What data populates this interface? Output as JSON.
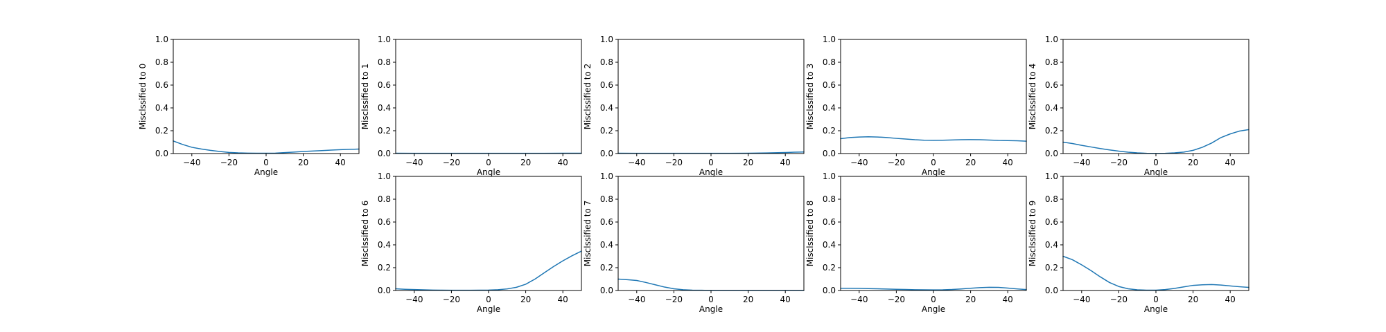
{
  "chart_data": [
    {
      "type": "line",
      "xlabel": "Angle",
      "ylabel": "Misclssified to 0",
      "xlim": [
        -50,
        50
      ],
      "ylim": [
        0,
        1
      ],
      "xticks": [
        -40,
        -20,
        0,
        20,
        40
      ],
      "yticks": [
        0.0,
        0.2,
        0.4,
        0.6,
        0.8,
        1.0
      ],
      "grid": false,
      "series": [
        {
          "color": "#1f77b4",
          "x": [
            -50,
            -45,
            -40,
            -35,
            -30,
            -25,
            -20,
            -15,
            -10,
            -5,
            0,
            5,
            10,
            15,
            20,
            25,
            30,
            35,
            40,
            45,
            50
          ],
          "y": [
            0.11,
            0.08,
            0.055,
            0.04,
            0.028,
            0.018,
            0.01,
            0.006,
            0.004,
            0.003,
            0.003,
            0.004,
            0.008,
            0.013,
            0.018,
            0.022,
            0.026,
            0.03,
            0.034,
            0.037,
            0.039
          ]
        }
      ]
    },
    {
      "type": "line",
      "xlabel": "Angle",
      "ylabel": "Misclssified to 1",
      "xlim": [
        -50,
        50
      ],
      "ylim": [
        0,
        1
      ],
      "xticks": [
        -40,
        -20,
        0,
        20,
        40
      ],
      "yticks": [
        0.0,
        0.2,
        0.4,
        0.6,
        0.8,
        1.0
      ],
      "grid": false,
      "series": [
        {
          "color": "#1f77b4",
          "x": [
            -50,
            -40,
            -30,
            -20,
            -10,
            0,
            10,
            20,
            30,
            40,
            50
          ],
          "y": [
            0.003,
            0.002,
            0.002,
            0.002,
            0.002,
            0.002,
            0.002,
            0.002,
            0.002,
            0.003,
            0.003
          ]
        }
      ]
    },
    {
      "type": "line",
      "xlabel": "Angle",
      "ylabel": "Misclssified to 2",
      "xlim": [
        -50,
        50
      ],
      "ylim": [
        0,
        1
      ],
      "xticks": [
        -40,
        -20,
        0,
        20,
        40
      ],
      "yticks": [
        0.0,
        0.2,
        0.4,
        0.6,
        0.8,
        1.0
      ],
      "grid": false,
      "series": [
        {
          "color": "#1f77b4",
          "x": [
            -50,
            -40,
            -30,
            -20,
            -10,
            0,
            10,
            20,
            30,
            40,
            45,
            50
          ],
          "y": [
            0.003,
            0.002,
            0.002,
            0.002,
            0.002,
            0.002,
            0.002,
            0.003,
            0.005,
            0.009,
            0.012,
            0.014
          ]
        }
      ]
    },
    {
      "type": "line",
      "xlabel": "Angle",
      "ylabel": "Misclssified to 3",
      "xlim": [
        -50,
        50
      ],
      "ylim": [
        0,
        1
      ],
      "xticks": [
        -40,
        -20,
        0,
        20,
        40
      ],
      "yticks": [
        0.0,
        0.2,
        0.4,
        0.6,
        0.8,
        1.0
      ],
      "grid": false,
      "series": [
        {
          "color": "#1f77b4",
          "x": [
            -50,
            -45,
            -40,
            -35,
            -30,
            -25,
            -20,
            -15,
            -10,
            -5,
            0,
            5,
            10,
            15,
            20,
            25,
            30,
            35,
            40,
            45,
            50
          ],
          "y": [
            0.13,
            0.14,
            0.145,
            0.147,
            0.145,
            0.14,
            0.133,
            0.127,
            0.121,
            0.117,
            0.116,
            0.117,
            0.119,
            0.121,
            0.122,
            0.121,
            0.118,
            0.115,
            0.114,
            0.112,
            0.108
          ]
        }
      ]
    },
    {
      "type": "line",
      "xlabel": "Angle",
      "ylabel": "Misclssified to 4",
      "xlim": [
        -50,
        50
      ],
      "ylim": [
        0,
        1
      ],
      "xticks": [
        -40,
        -20,
        0,
        20,
        40
      ],
      "yticks": [
        0.0,
        0.2,
        0.4,
        0.6,
        0.8,
        1.0
      ],
      "grid": false,
      "series": [
        {
          "color": "#1f77b4",
          "x": [
            -50,
            -45,
            -40,
            -35,
            -30,
            -25,
            -20,
            -15,
            -10,
            -5,
            0,
            5,
            10,
            15,
            20,
            25,
            30,
            35,
            40,
            45,
            50
          ],
          "y": [
            0.1,
            0.088,
            0.072,
            0.058,
            0.044,
            0.032,
            0.021,
            0.012,
            0.006,
            0.002,
            0.001,
            0.002,
            0.006,
            0.013,
            0.028,
            0.055,
            0.092,
            0.14,
            0.172,
            0.197,
            0.21
          ]
        }
      ]
    },
    {
      "type": "line",
      "xlabel": "Angle",
      "ylabel": "Misclssified to 6",
      "xlim": [
        -50,
        50
      ],
      "ylim": [
        0,
        1
      ],
      "xticks": [
        -40,
        -20,
        0,
        20,
        40
      ],
      "yticks": [
        0.0,
        0.2,
        0.4,
        0.6,
        0.8,
        1.0
      ],
      "grid": false,
      "series": [
        {
          "color": "#1f77b4",
          "x": [
            -50,
            -45,
            -40,
            -35,
            -30,
            -25,
            -20,
            -15,
            -10,
            -5,
            0,
            5,
            10,
            15,
            20,
            25,
            30,
            35,
            40,
            45,
            50
          ],
          "y": [
            0.015,
            0.011,
            0.008,
            0.006,
            0.004,
            0.003,
            0.002,
            0.002,
            0.002,
            0.003,
            0.004,
            0.007,
            0.014,
            0.028,
            0.055,
            0.1,
            0.155,
            0.21,
            0.26,
            0.305,
            0.345
          ]
        }
      ]
    },
    {
      "type": "line",
      "xlabel": "Angle",
      "ylabel": "Misclssified to 7",
      "xlim": [
        -50,
        50
      ],
      "ylim": [
        0,
        1
      ],
      "xticks": [
        -40,
        -20,
        0,
        20,
        40
      ],
      "yticks": [
        0.0,
        0.2,
        0.4,
        0.6,
        0.8,
        1.0
      ],
      "grid": false,
      "series": [
        {
          "color": "#1f77b4",
          "x": [
            -50,
            -45,
            -40,
            -35,
            -30,
            -25,
            -20,
            -15,
            -10,
            -5,
            0,
            10,
            20,
            30,
            40,
            50
          ],
          "y": [
            0.1,
            0.095,
            0.088,
            0.07,
            0.05,
            0.03,
            0.015,
            0.007,
            0.003,
            0.002,
            0.001,
            0.001,
            0.001,
            0.001,
            0.001,
            0.001
          ]
        }
      ]
    },
    {
      "type": "line",
      "xlabel": "Angle",
      "ylabel": "Misclssified to 8",
      "xlim": [
        -50,
        50
      ],
      "ylim": [
        0,
        1
      ],
      "xticks": [
        -40,
        -20,
        0,
        20,
        40
      ],
      "yticks": [
        0.0,
        0.2,
        0.4,
        0.6,
        0.8,
        1.0
      ],
      "grid": false,
      "series": [
        {
          "color": "#1f77b4",
          "x": [
            -50,
            -45,
            -40,
            -35,
            -30,
            -25,
            -20,
            -15,
            -10,
            -5,
            0,
            5,
            10,
            15,
            20,
            25,
            30,
            35,
            40,
            45,
            50
          ],
          "y": [
            0.02,
            0.02,
            0.019,
            0.017,
            0.015,
            0.013,
            0.011,
            0.009,
            0.007,
            0.006,
            0.005,
            0.006,
            0.009,
            0.014,
            0.02,
            0.025,
            0.028,
            0.027,
            0.021,
            0.014,
            0.008
          ]
        }
      ]
    },
    {
      "type": "line",
      "xlabel": "Angle",
      "ylabel": "Misclssified to 9",
      "xlim": [
        -50,
        50
      ],
      "ylim": [
        0,
        1
      ],
      "xticks": [
        -40,
        -20,
        0,
        20,
        40
      ],
      "yticks": [
        0.0,
        0.2,
        0.4,
        0.6,
        0.8,
        1.0
      ],
      "grid": false,
      "series": [
        {
          "color": "#1f77b4",
          "x": [
            -50,
            -45,
            -40,
            -35,
            -30,
            -25,
            -20,
            -15,
            -10,
            -5,
            0,
            5,
            10,
            15,
            20,
            25,
            30,
            35,
            40,
            45,
            50
          ],
          "y": [
            0.3,
            0.27,
            0.225,
            0.175,
            0.12,
            0.07,
            0.035,
            0.015,
            0.006,
            0.003,
            0.003,
            0.008,
            0.018,
            0.032,
            0.045,
            0.05,
            0.052,
            0.048,
            0.04,
            0.033,
            0.027
          ]
        }
      ]
    }
  ]
}
